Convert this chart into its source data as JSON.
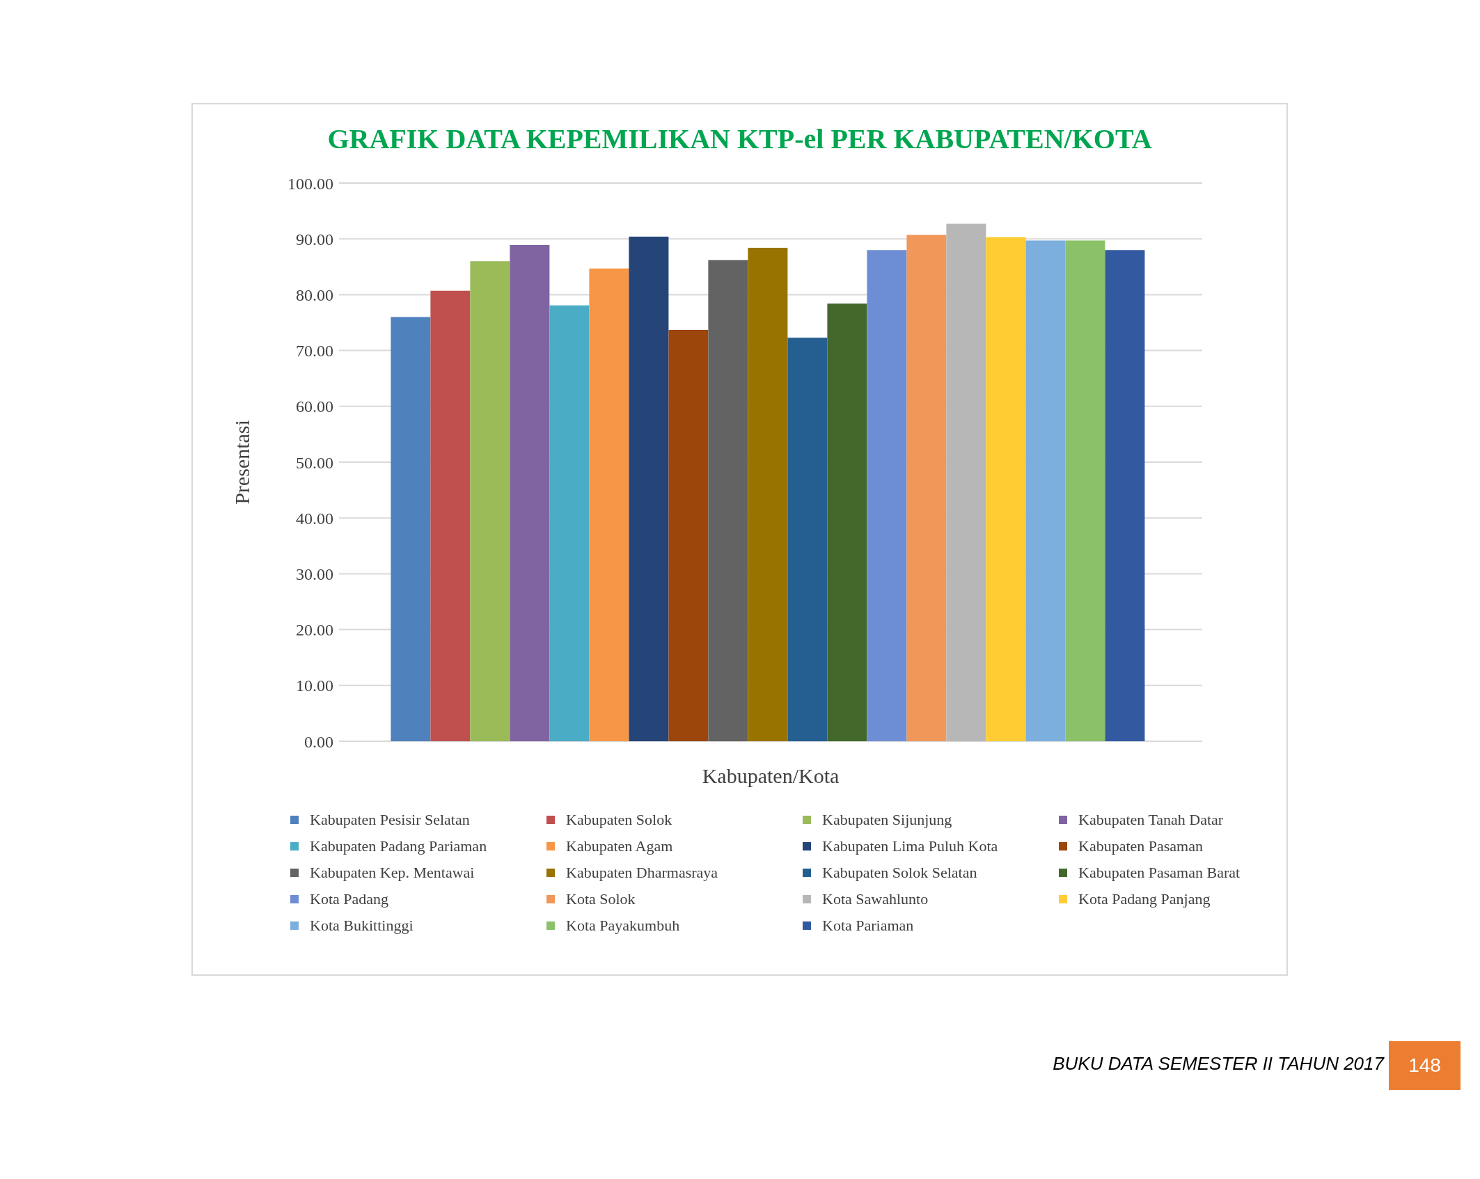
{
  "chart_data": {
    "type": "bar",
    "title": "GRAFIK DATA KEPEMILIKAN KTP-el PER KABUPATEN/KOTA",
    "xlabel": "Kabupaten/Kota",
    "ylabel": "Presentasi",
    "categories": [
      null
    ],
    "series": [
      {
        "name": "Kabupaten Pesisir Selatan",
        "color": "#4f81bd",
        "values": [
          76.0
        ]
      },
      {
        "name": "Kabupaten Solok",
        "color": "#c0504d",
        "values": [
          80.7
        ]
      },
      {
        "name": "Kabupaten Sijunjung",
        "color": "#9bbb59",
        "values": [
          86.0
        ]
      },
      {
        "name": "Kabupaten Tanah Datar",
        "color": "#8064a2",
        "values": [
          88.9
        ]
      },
      {
        "name": "Kabupaten Padang Pariaman",
        "color": "#4bacc6",
        "values": [
          78.1
        ]
      },
      {
        "name": "Kabupaten Agam",
        "color": "#f79646",
        "values": [
          84.7
        ]
      },
      {
        "name": "Kabupaten Lima Puluh Kota",
        "color": "#254478",
        "values": [
          90.4
        ]
      },
      {
        "name": "Kabupaten Pasaman",
        "color": "#9c460c",
        "values": [
          73.7
        ]
      },
      {
        "name": "Kabupaten Kep. Mentawai",
        "color": "#636363",
        "values": [
          86.2
        ]
      },
      {
        "name": "Kabupaten Dharmasraya",
        "color": "#997300",
        "values": [
          88.4
        ]
      },
      {
        "name": "Kabupaten Solok Selatan",
        "color": "#255e91",
        "values": [
          72.3
        ]
      },
      {
        "name": "Kabupaten Pasaman Barat",
        "color": "#43682b",
        "values": [
          78.4
        ]
      },
      {
        "name": "Kota Padang",
        "color": "#6d8ed4",
        "values": [
          88.0
        ]
      },
      {
        "name": "Kota Solok",
        "color": "#f1975a",
        "values": [
          90.7
        ]
      },
      {
        "name": "Kota Sawahlunto",
        "color": "#b7b7b7",
        "values": [
          92.7
        ]
      },
      {
        "name": "Kota Padang Panjang",
        "color": "#ffcd33",
        "values": [
          90.3
        ]
      },
      {
        "name": "Kota Bukittinggi",
        "color": "#7cafde",
        "values": [
          89.7
        ]
      },
      {
        "name": "Kota Payakumbuh",
        "color": "#8bc168",
        "values": [
          89.7
        ]
      },
      {
        "name": "Kota Pariaman",
        "color": "#335aa1",
        "values": [
          88.0
        ]
      }
    ],
    "ylim": [
      0,
      100
    ],
    "yticks": [
      {
        "value": 0,
        "label": "0.00"
      },
      {
        "value": 10,
        "label": "10.00"
      },
      {
        "value": 20,
        "label": "20.00"
      },
      {
        "value": 30,
        "label": "30.00"
      },
      {
        "value": 40,
        "label": "40.00"
      },
      {
        "value": 50,
        "label": "50.00"
      },
      {
        "value": 60,
        "label": "60.00"
      },
      {
        "value": 70,
        "label": "70.00"
      },
      {
        "value": 80,
        "label": "80.00"
      },
      {
        "value": 90,
        "label": "90.00"
      },
      {
        "value": 100,
        "label": "100.00"
      }
    ],
    "grid": "y",
    "legend": "bottom",
    "annotations": [
      "BUKU DATA SEMESTER II TAHUN 2017",
      "148"
    ]
  }
}
